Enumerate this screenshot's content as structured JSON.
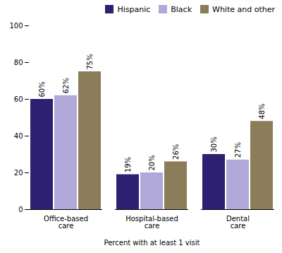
{
  "chart_data": {
    "type": "bar",
    "categories": [
      "Office-based\ncare",
      "Hospital-based\ncare",
      "Dental\ncare"
    ],
    "series": [
      {
        "name": "Hispanic",
        "color": "#2e2070",
        "values": [
          60,
          19,
          30
        ],
        "value_labels": [
          "60%",
          "19%",
          "30%"
        ]
      },
      {
        "name": "Black",
        "color": "#b0a8d8",
        "values": [
          62,
          20,
          27
        ],
        "value_labels": [
          "62%",
          "20%",
          "27%"
        ]
      },
      {
        "name": "White and other",
        "color": "#8b7d5a",
        "values": [
          75,
          26,
          48
        ],
        "value_labels": [
          "75%",
          "26%",
          "48%"
        ]
      }
    ],
    "xlabel": "Percent with at least 1 visit",
    "ylim": [
      0,
      100
    ],
    "yticks": [
      0,
      20,
      40,
      60,
      80,
      100
    ],
    "legend": "upper right",
    "data_labels": true,
    "grid": false
  }
}
